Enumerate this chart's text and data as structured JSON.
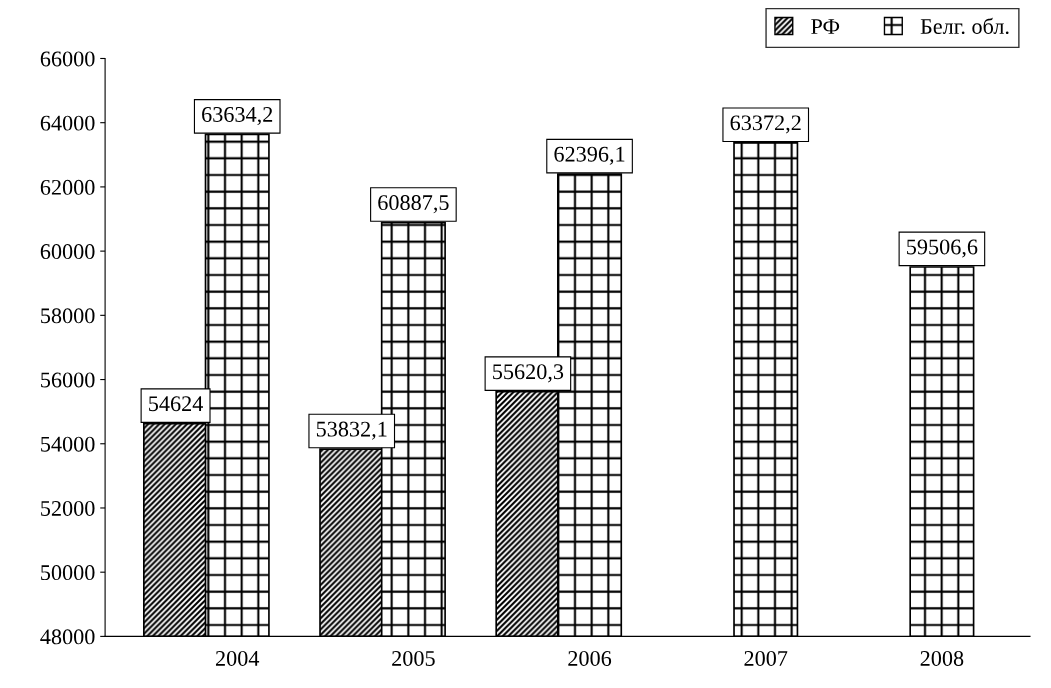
{
  "chart_data": {
    "type": "bar",
    "categories": [
      "2004",
      "2005",
      "2006",
      "2007",
      "2008"
    ],
    "series": [
      {
        "name": "РФ",
        "color": "#000000",
        "values": [
          54624,
          53832.1,
          55620.3,
          null,
          null
        ],
        "value_labels": [
          "54624",
          "53832,1",
          "55620,3",
          null,
          null
        ]
      },
      {
        "name": "Белг. обл.",
        "color": "#000000",
        "values": [
          63634.2,
          60887.5,
          62396.1,
          63372.2,
          59506.6
        ],
        "value_labels": [
          "63634,2",
          "60887,5",
          "62396,1",
          "63372,2",
          "59506,6"
        ]
      }
    ],
    "ylim": [
      48000,
      66000
    ],
    "yticks": [
      48000,
      50000,
      52000,
      54000,
      56000,
      58000,
      60000,
      62000,
      64000,
      66000
    ],
    "grid": false,
    "legend": "top right"
  }
}
